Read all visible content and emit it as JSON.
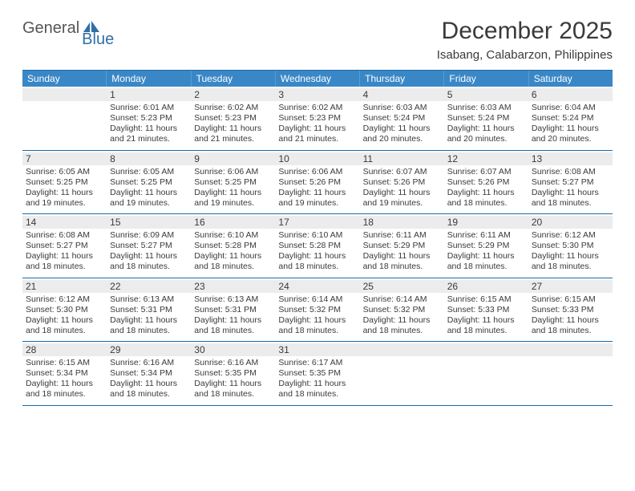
{
  "logo": {
    "text1": "General",
    "text2": "Blue"
  },
  "header": {
    "month_title": "December 2025",
    "location": "Isabang, Calabarzon, Philippines"
  },
  "style": {
    "header_bar_color": "#3a87c7",
    "rule_color": "#1f6aa5",
    "daynum_bg": "#ececec",
    "text_color": "#3a3a3a",
    "dow_fontsize": 12,
    "daynum_fontsize": 12,
    "body_fontsize": 10.5,
    "title_fontsize": 30,
    "location_fontsize": 15
  },
  "dow": [
    "Sunday",
    "Monday",
    "Tuesday",
    "Wednesday",
    "Thursday",
    "Friday",
    "Saturday"
  ],
  "weeks": [
    [
      {
        "n": "",
        "sr": "",
        "ss": "",
        "dl": ""
      },
      {
        "n": "1",
        "sr": "Sunrise: 6:01 AM",
        "ss": "Sunset: 5:23 PM",
        "dl": "Daylight: 11 hours and 21 minutes."
      },
      {
        "n": "2",
        "sr": "Sunrise: 6:02 AM",
        "ss": "Sunset: 5:23 PM",
        "dl": "Daylight: 11 hours and 21 minutes."
      },
      {
        "n": "3",
        "sr": "Sunrise: 6:02 AM",
        "ss": "Sunset: 5:23 PM",
        "dl": "Daylight: 11 hours and 21 minutes."
      },
      {
        "n": "4",
        "sr": "Sunrise: 6:03 AM",
        "ss": "Sunset: 5:24 PM",
        "dl": "Daylight: 11 hours and 20 minutes."
      },
      {
        "n": "5",
        "sr": "Sunrise: 6:03 AM",
        "ss": "Sunset: 5:24 PM",
        "dl": "Daylight: 11 hours and 20 minutes."
      },
      {
        "n": "6",
        "sr": "Sunrise: 6:04 AM",
        "ss": "Sunset: 5:24 PM",
        "dl": "Daylight: 11 hours and 20 minutes."
      }
    ],
    [
      {
        "n": "7",
        "sr": "Sunrise: 6:05 AM",
        "ss": "Sunset: 5:25 PM",
        "dl": "Daylight: 11 hours and 19 minutes."
      },
      {
        "n": "8",
        "sr": "Sunrise: 6:05 AM",
        "ss": "Sunset: 5:25 PM",
        "dl": "Daylight: 11 hours and 19 minutes."
      },
      {
        "n": "9",
        "sr": "Sunrise: 6:06 AM",
        "ss": "Sunset: 5:25 PM",
        "dl": "Daylight: 11 hours and 19 minutes."
      },
      {
        "n": "10",
        "sr": "Sunrise: 6:06 AM",
        "ss": "Sunset: 5:26 PM",
        "dl": "Daylight: 11 hours and 19 minutes."
      },
      {
        "n": "11",
        "sr": "Sunrise: 6:07 AM",
        "ss": "Sunset: 5:26 PM",
        "dl": "Daylight: 11 hours and 19 minutes."
      },
      {
        "n": "12",
        "sr": "Sunrise: 6:07 AM",
        "ss": "Sunset: 5:26 PM",
        "dl": "Daylight: 11 hours and 18 minutes."
      },
      {
        "n": "13",
        "sr": "Sunrise: 6:08 AM",
        "ss": "Sunset: 5:27 PM",
        "dl": "Daylight: 11 hours and 18 minutes."
      }
    ],
    [
      {
        "n": "14",
        "sr": "Sunrise: 6:08 AM",
        "ss": "Sunset: 5:27 PM",
        "dl": "Daylight: 11 hours and 18 minutes."
      },
      {
        "n": "15",
        "sr": "Sunrise: 6:09 AM",
        "ss": "Sunset: 5:27 PM",
        "dl": "Daylight: 11 hours and 18 minutes."
      },
      {
        "n": "16",
        "sr": "Sunrise: 6:10 AM",
        "ss": "Sunset: 5:28 PM",
        "dl": "Daylight: 11 hours and 18 minutes."
      },
      {
        "n": "17",
        "sr": "Sunrise: 6:10 AM",
        "ss": "Sunset: 5:28 PM",
        "dl": "Daylight: 11 hours and 18 minutes."
      },
      {
        "n": "18",
        "sr": "Sunrise: 6:11 AM",
        "ss": "Sunset: 5:29 PM",
        "dl": "Daylight: 11 hours and 18 minutes."
      },
      {
        "n": "19",
        "sr": "Sunrise: 6:11 AM",
        "ss": "Sunset: 5:29 PM",
        "dl": "Daylight: 11 hours and 18 minutes."
      },
      {
        "n": "20",
        "sr": "Sunrise: 6:12 AM",
        "ss": "Sunset: 5:30 PM",
        "dl": "Daylight: 11 hours and 18 minutes."
      }
    ],
    [
      {
        "n": "21",
        "sr": "Sunrise: 6:12 AM",
        "ss": "Sunset: 5:30 PM",
        "dl": "Daylight: 11 hours and 18 minutes."
      },
      {
        "n": "22",
        "sr": "Sunrise: 6:13 AM",
        "ss": "Sunset: 5:31 PM",
        "dl": "Daylight: 11 hours and 18 minutes."
      },
      {
        "n": "23",
        "sr": "Sunrise: 6:13 AM",
        "ss": "Sunset: 5:31 PM",
        "dl": "Daylight: 11 hours and 18 minutes."
      },
      {
        "n": "24",
        "sr": "Sunrise: 6:14 AM",
        "ss": "Sunset: 5:32 PM",
        "dl": "Daylight: 11 hours and 18 minutes."
      },
      {
        "n": "25",
        "sr": "Sunrise: 6:14 AM",
        "ss": "Sunset: 5:32 PM",
        "dl": "Daylight: 11 hours and 18 minutes."
      },
      {
        "n": "26",
        "sr": "Sunrise: 6:15 AM",
        "ss": "Sunset: 5:33 PM",
        "dl": "Daylight: 11 hours and 18 minutes."
      },
      {
        "n": "27",
        "sr": "Sunrise: 6:15 AM",
        "ss": "Sunset: 5:33 PM",
        "dl": "Daylight: 11 hours and 18 minutes."
      }
    ],
    [
      {
        "n": "28",
        "sr": "Sunrise: 6:15 AM",
        "ss": "Sunset: 5:34 PM",
        "dl": "Daylight: 11 hours and 18 minutes."
      },
      {
        "n": "29",
        "sr": "Sunrise: 6:16 AM",
        "ss": "Sunset: 5:34 PM",
        "dl": "Daylight: 11 hours and 18 minutes."
      },
      {
        "n": "30",
        "sr": "Sunrise: 6:16 AM",
        "ss": "Sunset: 5:35 PM",
        "dl": "Daylight: 11 hours and 18 minutes."
      },
      {
        "n": "31",
        "sr": "Sunrise: 6:17 AM",
        "ss": "Sunset: 5:35 PM",
        "dl": "Daylight: 11 hours and 18 minutes."
      },
      {
        "n": "",
        "sr": "",
        "ss": "",
        "dl": ""
      },
      {
        "n": "",
        "sr": "",
        "ss": "",
        "dl": ""
      },
      {
        "n": "",
        "sr": "",
        "ss": "",
        "dl": ""
      }
    ]
  ]
}
